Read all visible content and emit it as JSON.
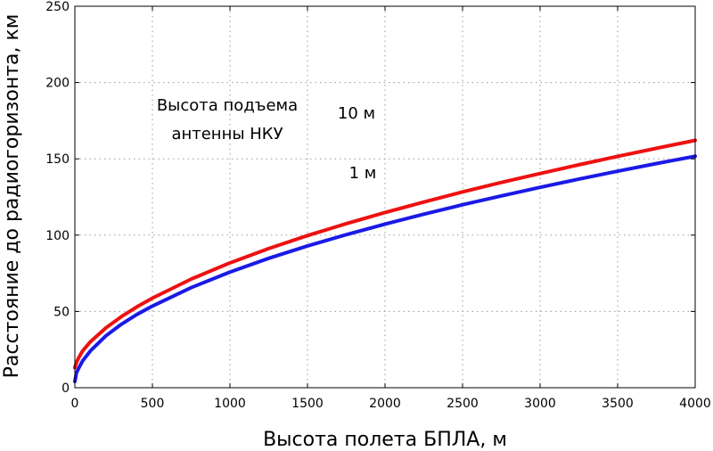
{
  "chart_data": {
    "type": "line",
    "title": "",
    "xlabel": "Высота полета БПЛА, м",
    "ylabel": "Расстояние до радиогоризонта, км",
    "xlim": [
      0,
      4000
    ],
    "ylim": [
      0,
      250
    ],
    "xticks": [
      0,
      500,
      1000,
      1500,
      2000,
      2500,
      3000,
      3500,
      4000
    ],
    "yticks": [
      0,
      50,
      100,
      150,
      200,
      250
    ],
    "grid": true,
    "annotations": {
      "legend_title_line1": "Высота подъема",
      "legend_title_line2": "антенны НКУ",
      "label_10m": "10 м",
      "label_1m": "1 м"
    },
    "series": [
      {
        "name": "10 м",
        "color": "#ee1111",
        "x": [
          0,
          10,
          25,
          50,
          100,
          200,
          300,
          400,
          500,
          750,
          1000,
          1250,
          1500,
          1750,
          2000,
          2250,
          2500,
          2750,
          3000,
          3250,
          3500,
          3750,
          4000
        ],
        "y": [
          13.1,
          16.5,
          19.7,
          24.1,
          30.1,
          39.2,
          46.6,
          53.0,
          58.7,
          71.2,
          81.8,
          91.2,
          99.7,
          107.5,
          114.8,
          121.7,
          128.3,
          134.5,
          140.4,
          146.1,
          151.6,
          156.9,
          162.1
        ]
      },
      {
        "name": "1 м",
        "color": "#1a1ae6",
        "x": [
          0,
          10,
          25,
          50,
          100,
          200,
          300,
          400,
          500,
          750,
          1000,
          1250,
          1500,
          1750,
          2000,
          2250,
          2500,
          2750,
          3000,
          3250,
          3500,
          3750,
          4000
        ],
        "y": [
          4.1,
          9.6,
          12.9,
          17.6,
          24.1,
          34.0,
          41.6,
          48.0,
          53.5,
          65.6,
          75.8,
          84.8,
          92.9,
          100.3,
          107.2,
          113.7,
          119.9,
          125.7,
          131.3,
          136.7,
          141.9,
          146.9,
          151.7
        ]
      }
    ]
  }
}
